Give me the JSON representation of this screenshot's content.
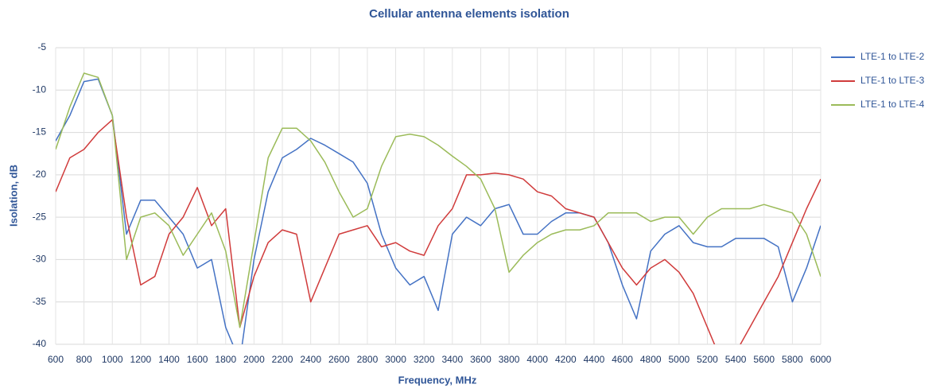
{
  "chart_data": {
    "type": "line",
    "title": "Cellular antenna elements isolation",
    "x_label": "Frequency, MHz",
    "y_label": "Isolation, dB",
    "x": [
      600,
      700,
      800,
      900,
      1000,
      1100,
      1200,
      1300,
      1400,
      1500,
      1600,
      1700,
      1800,
      1900,
      2000,
      2100,
      2200,
      2300,
      2400,
      2500,
      2600,
      2700,
      2800,
      2900,
      3000,
      3100,
      3200,
      3300,
      3400,
      3500,
      3600,
      3700,
      3800,
      3900,
      4000,
      4100,
      4200,
      4300,
      4400,
      4500,
      4600,
      4700,
      4800,
      4900,
      5000,
      5100,
      5200,
      5300,
      5400,
      5500,
      5600,
      5700,
      5800,
      5900,
      6000
    ],
    "series": [
      {
        "name": "LTE-1 to LTE-2",
        "color": "#4472c4",
        "values": [
          -16,
          -13,
          -9,
          -8.7,
          -13,
          -27,
          -23,
          -23,
          -25,
          -27,
          -31,
          -30,
          -38,
          -42,
          -30,
          -22,
          -18,
          -17,
          -15.7,
          -16.5,
          -17.5,
          -18.5,
          -21,
          -27,
          -31,
          -33,
          -32,
          -36,
          -27,
          -25,
          -26,
          -24,
          -23.5,
          -27,
          -27,
          -25.5,
          -24.5,
          -24.5,
          -25,
          -28,
          -33,
          -37,
          -29,
          -27,
          -26,
          -28,
          -28.5,
          -28.5,
          -27.5,
          -27.5,
          -27.5,
          -28.5,
          -35,
          -31,
          -26
        ]
      },
      {
        "name": "LTE-1 to LTE-3",
        "color": "#d03b3b",
        "values": [
          -22,
          -18,
          -17,
          -15,
          -13.5,
          -25,
          -33,
          -32,
          -27,
          -25,
          -21.5,
          -26,
          -24,
          -38,
          -32,
          -28,
          -26.5,
          -27,
          -35,
          -31,
          -27,
          -26.5,
          -26,
          -28.5,
          -28,
          -29,
          -29.5,
          -26,
          -24,
          -20,
          -20,
          -19.8,
          -20,
          -20.5,
          -22,
          -22.5,
          -24,
          -24.5,
          -25,
          -28,
          -31,
          -33,
          -31,
          -30,
          -31.5,
          -34,
          -38,
          -42,
          -41,
          -38,
          -35,
          -32,
          -28,
          -24,
          -20.5
        ]
      },
      {
        "name": "LTE-1 to LTE-4",
        "color": "#9bbb59",
        "values": [
          -17,
          -12,
          -8,
          -8.5,
          -13,
          -30,
          -25,
          -24.5,
          -26,
          -29.5,
          -27,
          -24.5,
          -29,
          -38,
          -28,
          -18,
          -14.5,
          -14.5,
          -16,
          -18.5,
          -22,
          -25,
          -24,
          -19,
          -15.5,
          -15.2,
          -15.5,
          -16.5,
          -17.8,
          -19,
          -20.5,
          -24,
          -31.5,
          -29.5,
          -28,
          -27,
          -26.5,
          -26.5,
          -26,
          -24.5,
          -24.5,
          -24.5,
          -25.5,
          -25,
          -25,
          -27,
          -25,
          -24,
          -24,
          -24,
          -23.5,
          -24,
          -24.5,
          -27,
          -32
        ]
      }
    ],
    "xlim": [
      600,
      6000
    ],
    "xticks": [
      600,
      800,
      1000,
      1200,
      1400,
      1600,
      1800,
      2000,
      2200,
      2400,
      2600,
      2800,
      3000,
      3200,
      3400,
      3600,
      3800,
      4000,
      4200,
      4400,
      4600,
      4800,
      5000,
      5200,
      5400,
      5600,
      5800,
      6000
    ],
    "ylim": [
      -40,
      -5
    ],
    "yticks": [
      -5,
      -10,
      -15,
      -20,
      -25,
      -30,
      -35,
      -40
    ],
    "grid": true,
    "legend": "right"
  }
}
